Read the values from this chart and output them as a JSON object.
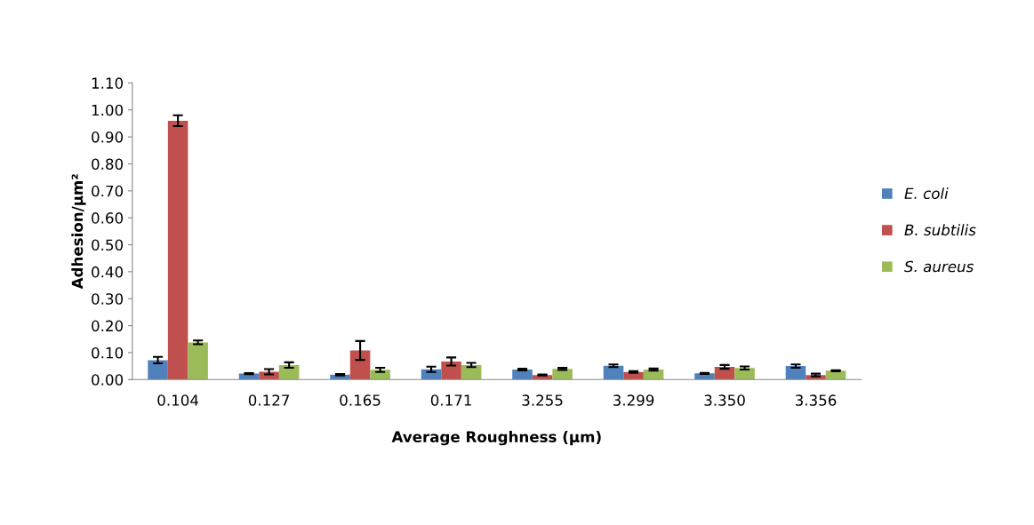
{
  "chart_data": {
    "type": "bar",
    "xlabel": "Average Roughness (µm)",
    "ylabel": "Adhesion/µm²",
    "categories": [
      "0.104",
      "0.127",
      "0.165",
      "0.171",
      "3.255",
      "3.299",
      "3.350",
      "3.356"
    ],
    "series": [
      {
        "name": "E. coli",
        "color": "#4f81bd",
        "values": [
          0.072,
          0.022,
          0.018,
          0.038,
          0.037,
          0.051,
          0.023,
          0.05
        ],
        "errors": [
          0.012,
          0.002,
          0.003,
          0.01,
          0.003,
          0.005,
          0.002,
          0.006
        ]
      },
      {
        "name": "B. subtilis",
        "color": "#c0504d",
        "values": [
          0.96,
          0.029,
          0.108,
          0.067,
          0.017,
          0.028,
          0.047,
          0.017
        ],
        "errors": [
          0.02,
          0.01,
          0.035,
          0.015,
          0.002,
          0.003,
          0.007,
          0.005
        ]
      },
      {
        "name": "S. aureus",
        "color": "#9bbb59",
        "values": [
          0.138,
          0.054,
          0.036,
          0.054,
          0.04,
          0.037,
          0.043,
          0.033
        ],
        "errors": [
          0.007,
          0.01,
          0.008,
          0.008,
          0.004,
          0.004,
          0.006,
          0.002
        ]
      }
    ],
    "ylim": [
      0,
      1.1
    ],
    "yticks": [
      {
        "value": 0,
        "label": "0.00"
      },
      {
        "value": 0.1,
        "label": "0.10"
      },
      {
        "value": 0.2,
        "label": "0.20"
      },
      {
        "value": 0.3,
        "label": "0.30"
      },
      {
        "value": 0.4,
        "label": "0.40"
      },
      {
        "value": 0.5,
        "label": "0.50"
      },
      {
        "value": 0.6,
        "label": "0.60"
      },
      {
        "value": 0.7,
        "label": "0.70"
      },
      {
        "value": 0.8,
        "label": "0.80"
      },
      {
        "value": 0.9,
        "label": "0.90"
      },
      {
        "value": 1.0,
        "label": "1.00"
      },
      {
        "value": 1.1,
        "label": "1.10"
      }
    ],
    "grid": false,
    "legend": "right"
  }
}
